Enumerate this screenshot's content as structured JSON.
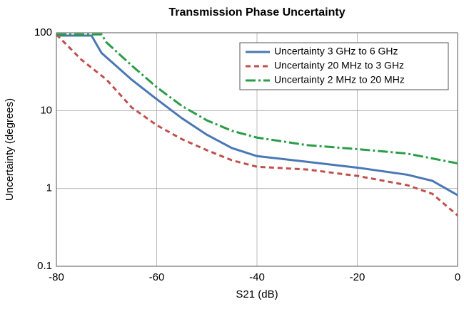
{
  "chart_data": {
    "type": "line",
    "title": "Transmission Phase Uncertainty",
    "xlabel": "S21 (dB)",
    "ylabel": "Uncertainty (degrees)",
    "log_y": true,
    "grid": true,
    "legend": "upper right",
    "xlim": [
      -80,
      0
    ],
    "xticks": [
      -80,
      -60,
      -40,
      -20,
      0
    ],
    "ylim": [
      0.1,
      100
    ],
    "yticks": [
      0.1,
      1,
      10,
      100
    ],
    "series": [
      {
        "name": "Uncertainty 3 GHz to 6 GHz",
        "color": "#4a78b5",
        "linestyle": "solid",
        "x": [
          -80,
          -73,
          -71,
          -65,
          -60,
          -55,
          -50,
          -45,
          -40,
          -30,
          -20,
          -10,
          -5,
          0
        ],
        "values": [
          92,
          92,
          55,
          25,
          14,
          8,
          4.9,
          3.3,
          2.6,
          2.2,
          1.85,
          1.5,
          1.25,
          0.82
        ]
      },
      {
        "name": "Uncertainty 20 MHz to  3 GHz",
        "color": "#c0504d",
        "linestyle": "dashed",
        "x": [
          -80,
          -75,
          -70,
          -65,
          -60,
          -55,
          -50,
          -45,
          -40,
          -30,
          -20,
          -10,
          -5,
          0
        ],
        "values": [
          95,
          45,
          25,
          11,
          6.5,
          4.3,
          3.1,
          2.3,
          1.9,
          1.75,
          1.45,
          1.1,
          0.85,
          0.45
        ]
      },
      {
        "name": "Uncertainty 2 MHz to 20 MHz",
        "color": "#2a9d47",
        "linestyle": "dashdot",
        "x": [
          -80,
          -71,
          -70,
          -65,
          -60,
          -55,
          -50,
          -45,
          -40,
          -30,
          -20,
          -10,
          0
        ],
        "values": [
          95,
          95,
          75,
          38,
          20,
          11.5,
          7.5,
          5.5,
          4.5,
          3.6,
          3.2,
          2.8,
          2.1
        ]
      }
    ]
  }
}
